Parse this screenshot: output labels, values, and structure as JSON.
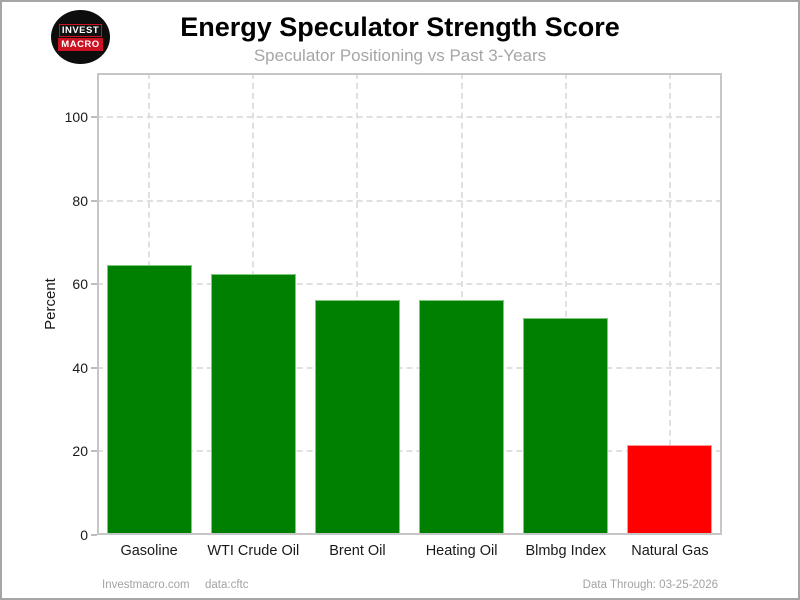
{
  "header": {
    "title": "Energy Speculator Strength Score",
    "subtitle": "Speculator Positioning vs Past 3-Years",
    "logo": {
      "line1": "INVEST",
      "line2": "MACRO"
    }
  },
  "footer": {
    "left1": "Investmacro.com",
    "left2": "data:cftc",
    "right": "Data Through: 03-25-2026"
  },
  "chart_data": {
    "type": "bar",
    "title": "Energy Speculator Strength Score",
    "subtitle": "Speculator Positioning vs Past 3-Years",
    "categories": [
      "Gasoline",
      "WTI Crude Oil",
      "Brent Oil",
      "Heating Oil",
      "Blmbg Index",
      "Natural Gas"
    ],
    "values": [
      64.6,
      62.4,
      56.3,
      56.2,
      51.8,
      21.6
    ],
    "colors": [
      "#008000",
      "#008000",
      "#008000",
      "#008000",
      "#008000",
      "#ff0000"
    ],
    "edge_colors": [
      "#7fc97f",
      "#7fc97f",
      "#7fc97f",
      "#7fc97f",
      "#7fc97f",
      "#ff9999"
    ],
    "xlabel": "",
    "ylabel": "Percent",
    "ylim": [
      0,
      100
    ],
    "yticks": [
      0,
      20,
      40,
      60,
      80,
      100
    ],
    "grid": "dashed",
    "legend": "none"
  },
  "colors": {
    "positive_bar": "#008000",
    "negative_bar": "#ff0000",
    "grid": "#e0e0e0",
    "axis_box": "#c6c6c6",
    "subtitle_gray": "#a6a6a6",
    "footer_gray": "#a3a3a3",
    "logo_red": "#cc1122"
  }
}
